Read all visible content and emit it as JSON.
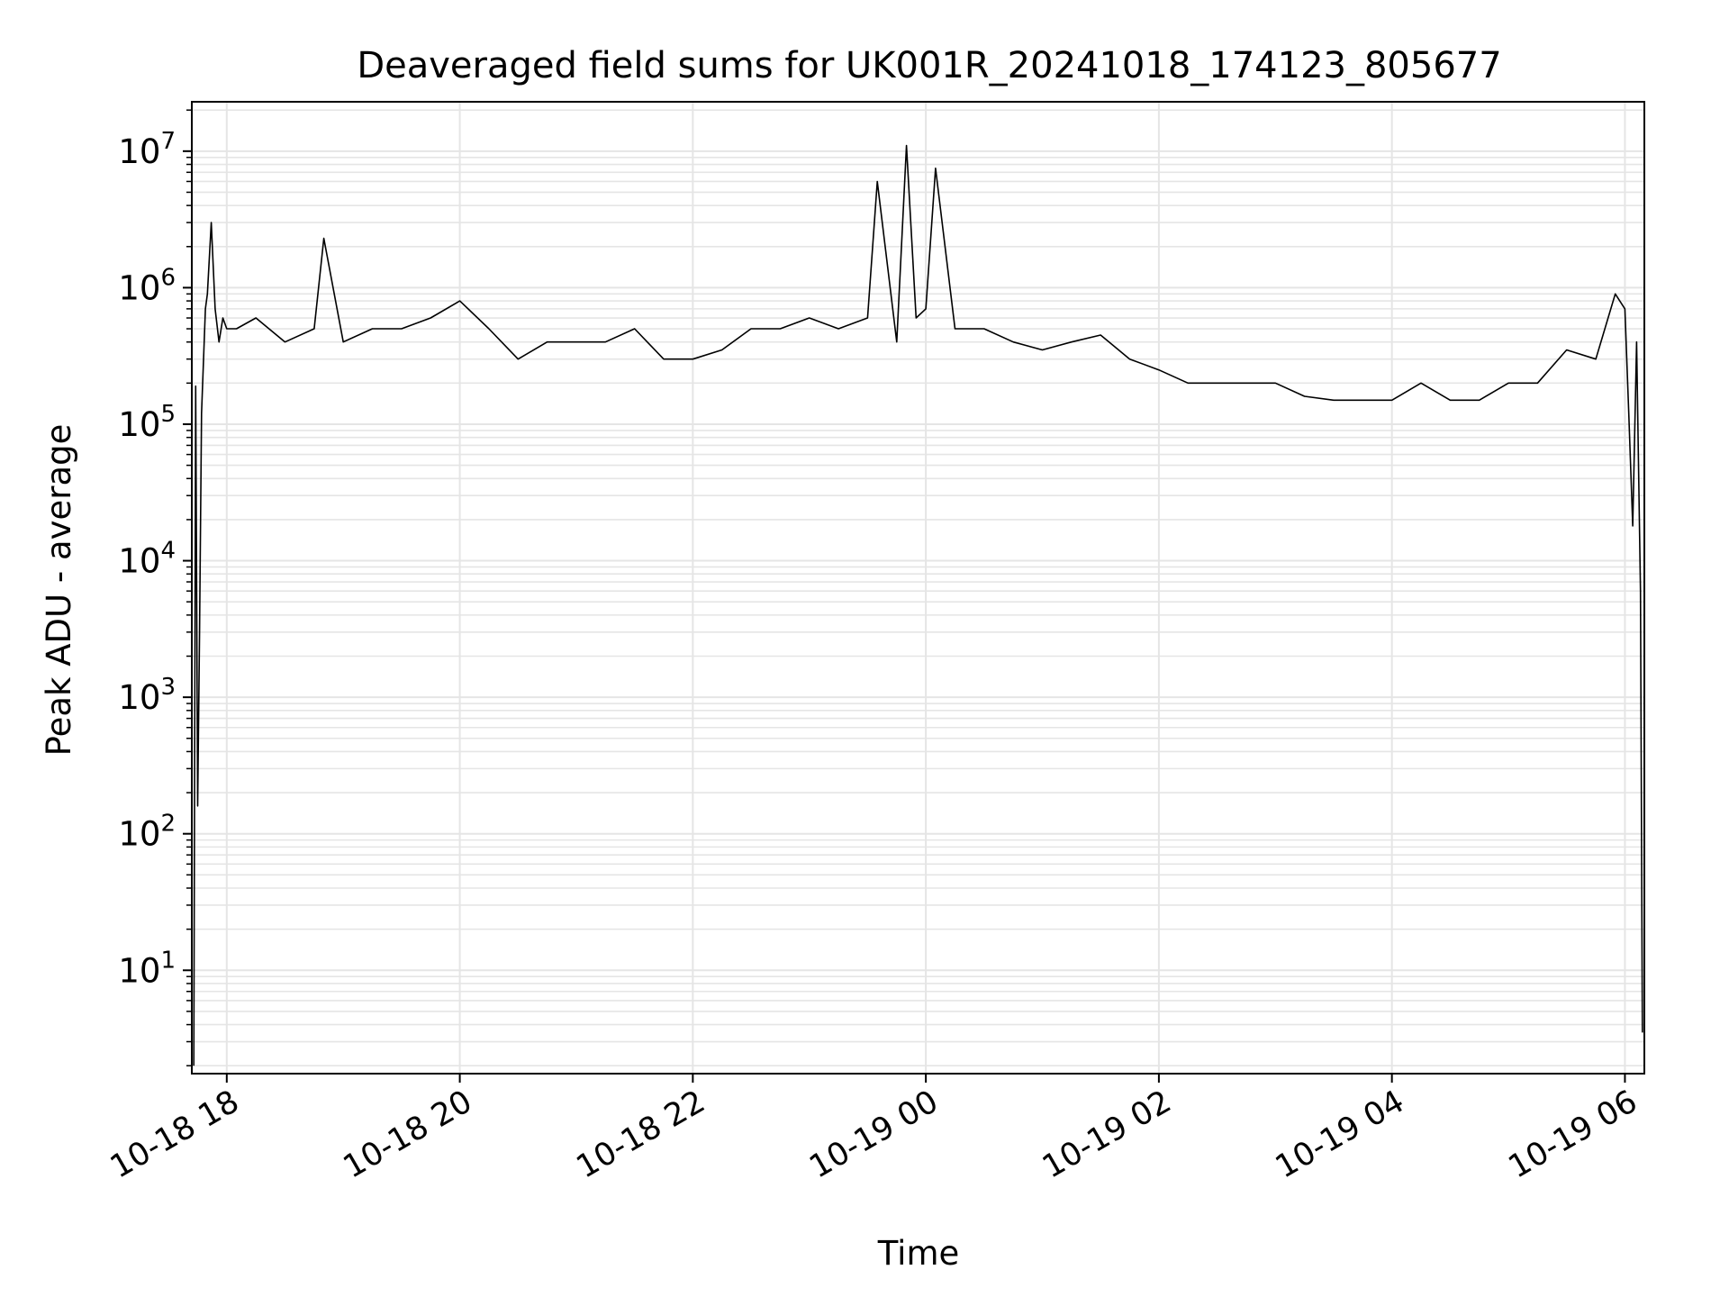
{
  "chart_data": {
    "type": "line",
    "title": "Deaveraged field sums for UK001R_20241018_174123_805677",
    "xlabel": "Time",
    "ylabel": "Peak ADU - average",
    "x_axis": {
      "kind": "datetime",
      "range": [
        "2024-10-18 17:42",
        "2024-10-19 06:10"
      ],
      "ticks": [
        {
          "value": "2024-10-18 18:00",
          "label": "10-18 18"
        },
        {
          "value": "2024-10-18 20:00",
          "label": "10-18 20"
        },
        {
          "value": "2024-10-18 22:00",
          "label": "10-18 22"
        },
        {
          "value": "2024-10-19 00:00",
          "label": "10-19 00"
        },
        {
          "value": "2024-10-19 02:00",
          "label": "10-19 02"
        },
        {
          "value": "2024-10-19 04:00",
          "label": "10-19 04"
        },
        {
          "value": "2024-10-19 06:00",
          "label": "10-19 06"
        }
      ]
    },
    "y_axis": {
      "scale": "log",
      "range": [
        1.75,
        23000000
      ],
      "ticks": [
        {
          "value": 10,
          "base": "10",
          "exp": "1"
        },
        {
          "value": 100,
          "base": "10",
          "exp": "2"
        },
        {
          "value": 1000,
          "base": "10",
          "exp": "3"
        },
        {
          "value": 10000,
          "base": "10",
          "exp": "4"
        },
        {
          "value": 100000,
          "base": "10",
          "exp": "5"
        },
        {
          "value": 1000000,
          "base": "10",
          "exp": "6"
        },
        {
          "value": 10000000,
          "base": "10",
          "exp": "7"
        }
      ]
    },
    "grid": true,
    "line_color": "#000000",
    "grid_color": "#e5e5e5",
    "series": [
      {
        "x": [
          "2024-10-18 17:43",
          "2024-10-18 17:44",
          "2024-10-18 17:45",
          "2024-10-18 17:46",
          "2024-10-18 17:47",
          "2024-10-18 17:49",
          "2024-10-18 17:50",
          "2024-10-18 17:52",
          "2024-10-18 17:54",
          "2024-10-18 17:56",
          "2024-10-18 17:58",
          "2024-10-18 18:00",
          "2024-10-18 18:05",
          "2024-10-18 18:15",
          "2024-10-18 18:30",
          "2024-10-18 18:45",
          "2024-10-18 18:50",
          "2024-10-18 19:00",
          "2024-10-18 19:15",
          "2024-10-18 19:30",
          "2024-10-18 19:45",
          "2024-10-18 20:00",
          "2024-10-18 20:15",
          "2024-10-18 20:30",
          "2024-10-18 20:45",
          "2024-10-18 21:00",
          "2024-10-18 21:15",
          "2024-10-18 21:30",
          "2024-10-18 21:45",
          "2024-10-18 22:00",
          "2024-10-18 22:15",
          "2024-10-18 22:30",
          "2024-10-18 22:45",
          "2024-10-18 23:00",
          "2024-10-18 23:15",
          "2024-10-18 23:30",
          "2024-10-18 23:35",
          "2024-10-18 23:45",
          "2024-10-18 23:50",
          "2024-10-18 23:55",
          "2024-10-19 00:00",
          "2024-10-19 00:05",
          "2024-10-19 00:15",
          "2024-10-19 00:30",
          "2024-10-19 00:45",
          "2024-10-19 01:00",
          "2024-10-19 01:15",
          "2024-10-19 01:30",
          "2024-10-19 01:45",
          "2024-10-19 02:00",
          "2024-10-19 02:15",
          "2024-10-19 02:30",
          "2024-10-19 02:45",
          "2024-10-19 03:00",
          "2024-10-19 03:15",
          "2024-10-19 03:30",
          "2024-10-19 03:45",
          "2024-10-19 04:00",
          "2024-10-19 04:15",
          "2024-10-19 04:30",
          "2024-10-19 04:45",
          "2024-10-19 05:00",
          "2024-10-19 05:15",
          "2024-10-19 05:30",
          "2024-10-19 05:45",
          "2024-10-19 05:55",
          "2024-10-19 06:00",
          "2024-10-19 06:02",
          "2024-10-19 06:04",
          "2024-10-19 06:06",
          "2024-10-19 06:08",
          "2024-10-19 06:09"
        ],
        "y": [
          2,
          190000,
          160,
          3000,
          120000,
          700000,
          900000,
          3000000,
          700000,
          400000,
          600000,
          500000,
          500000,
          600000,
          400000,
          500000,
          2300000,
          400000,
          500000,
          500000,
          600000,
          800000,
          500000,
          300000,
          400000,
          400000,
          400000,
          500000,
          300000,
          300000,
          350000,
          500000,
          500000,
          600000,
          500000,
          600000,
          6000000,
          400000,
          11000000,
          600000,
          700000,
          7500000,
          500000,
          500000,
          400000,
          350000,
          400000,
          450000,
          300000,
          250000,
          200000,
          200000,
          200000,
          200000,
          160000,
          150000,
          150000,
          150000,
          200000,
          150000,
          150000,
          200000,
          200000,
          350000,
          300000,
          900000,
          700000,
          120000,
          18000,
          400000,
          6000,
          3.5
        ]
      }
    ]
  }
}
